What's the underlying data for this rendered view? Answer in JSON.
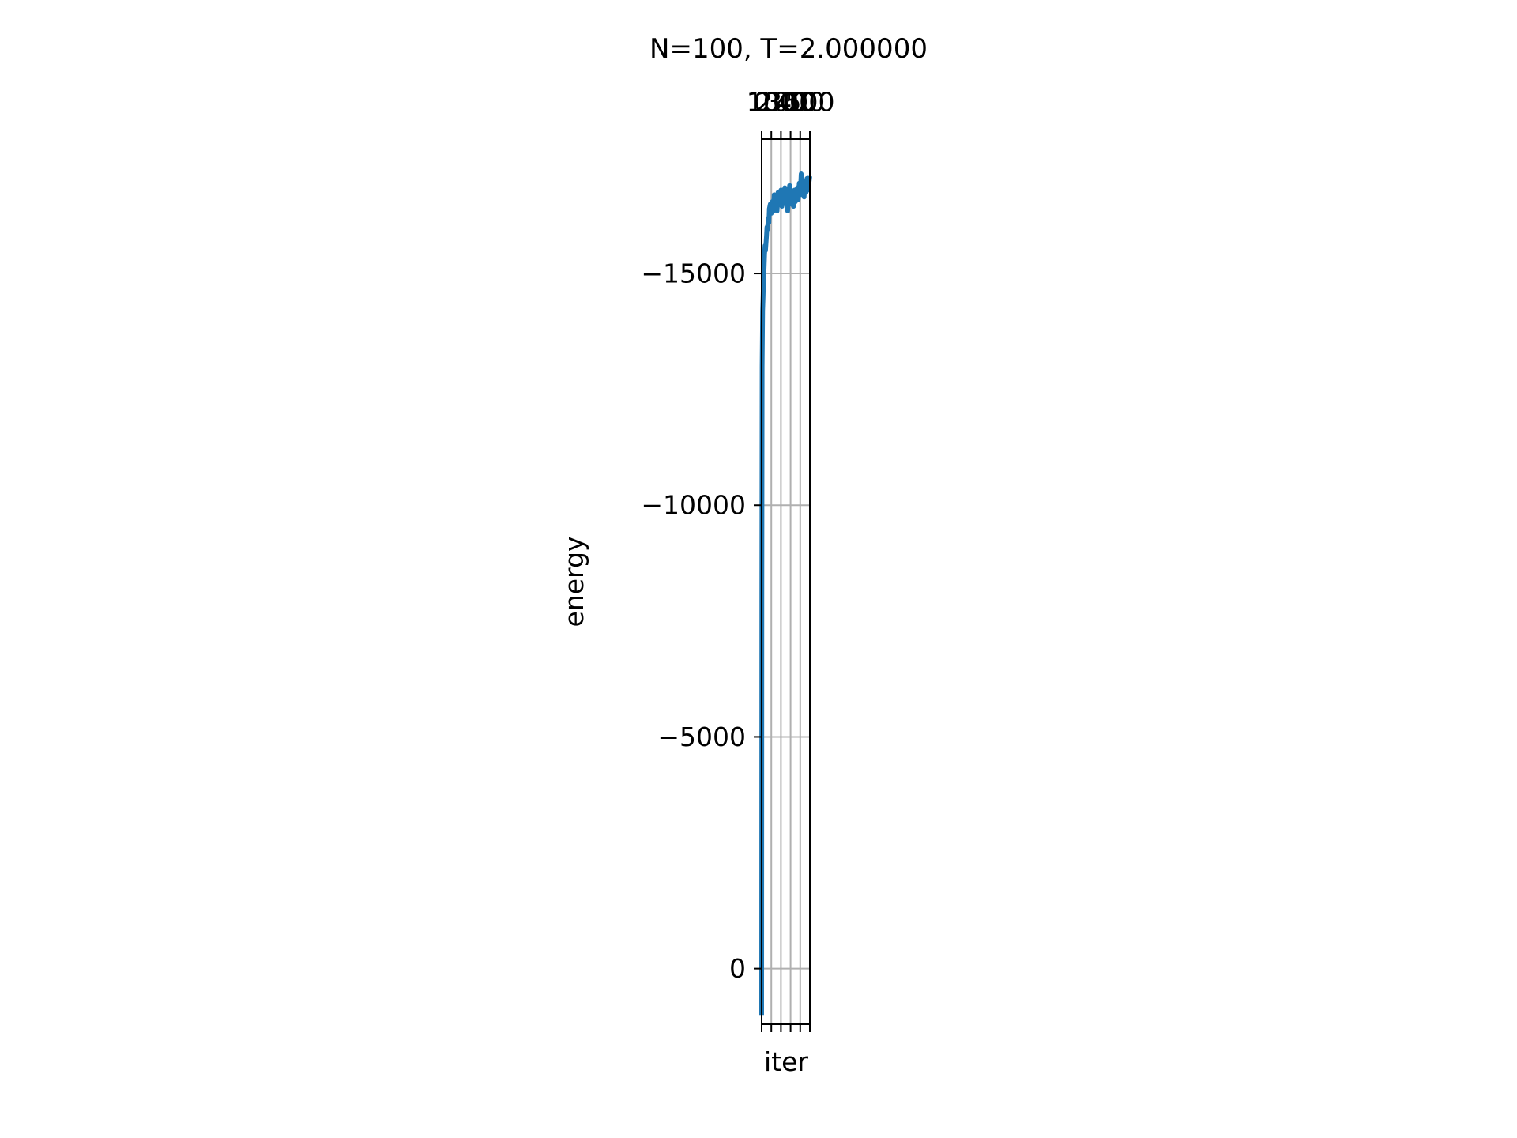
{
  "chart_data": {
    "type": "line",
    "title": "N=100, T=2.000000",
    "xlabel": "iter",
    "ylabel": "energy",
    "y_inverted": true,
    "xlim": [
      0,
      500
    ],
    "ylim": [
      1200,
      -17900
    ],
    "xticks": [
      0,
      100,
      200,
      300,
      400,
      500
    ],
    "xtick_labels": [
      "0",
      "100",
      "200",
      "300",
      "400",
      "500"
    ],
    "x_ticks_top": true,
    "yticks": [
      0,
      -5000,
      -10000,
      -15000
    ],
    "ytick_labels": [
      "0",
      "−5000",
      "−10000",
      "−15000"
    ],
    "grid": true,
    "colors": {
      "series": "#1f77b4",
      "grid": "#b0b0b0",
      "axes": "#000000"
    },
    "series": [
      {
        "x": [
          0,
          2,
          5,
          10,
          15,
          20,
          25,
          30,
          35,
          40,
          50,
          55,
          60,
          70,
          75,
          80,
          90,
          100,
          110,
          120,
          130,
          140,
          150,
          160,
          170,
          180,
          190,
          200,
          210,
          220,
          230,
          240,
          250,
          260,
          270,
          280,
          290,
          300,
          310,
          320,
          330,
          340,
          350,
          360,
          370,
          380,
          390,
          400,
          410,
          420,
          430,
          440,
          450,
          460,
          470,
          480,
          490,
          500
        ],
        "y": [
          1000,
          -8000,
          -13000,
          -14200,
          -14500,
          -14900,
          -15100,
          -15400,
          -15600,
          -15500,
          -15800,
          -16000,
          -15950,
          -16200,
          -16100,
          -16400,
          -16500,
          -16300,
          -16550,
          -16350,
          -16700,
          -16450,
          -16600,
          -16350,
          -16750,
          -16500,
          -16650,
          -16800,
          -16450,
          -16700,
          -16550,
          -16850,
          -16500,
          -16650,
          -16350,
          -16700,
          -16900,
          -16500,
          -16750,
          -16600,
          -16450,
          -16800,
          -16550,
          -16650,
          -16850,
          -16600,
          -16950,
          -16700,
          -17150,
          -16800,
          -17000,
          -16650,
          -16900,
          -16750,
          -17050,
          -16800,
          -16950,
          -17100
        ]
      }
    ]
  }
}
